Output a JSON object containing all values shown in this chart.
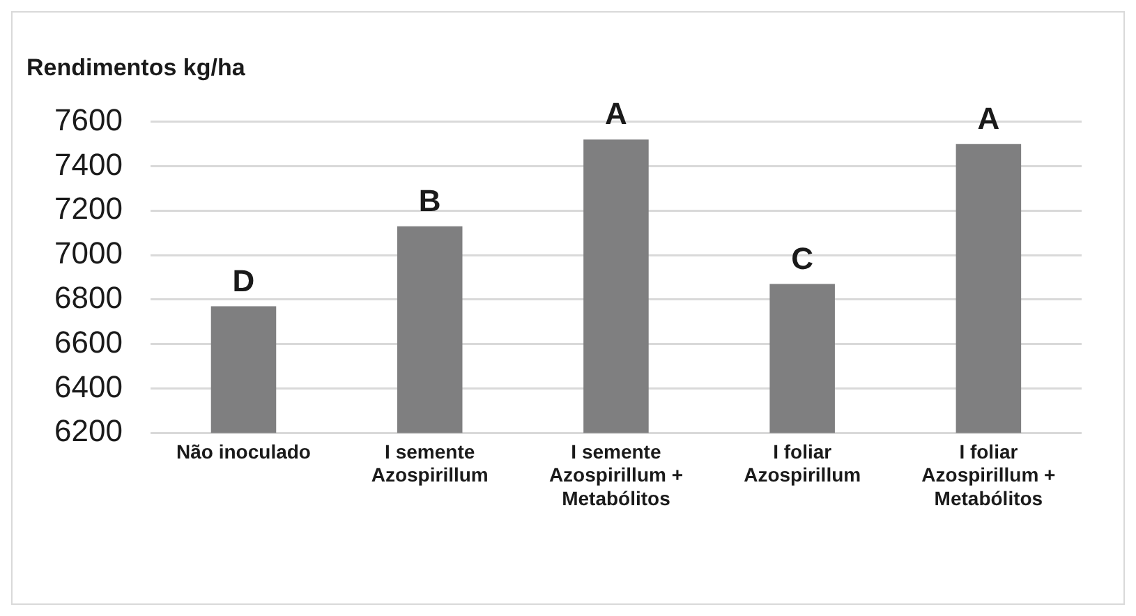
{
  "chart_data": {
    "type": "bar",
    "title": "Rendimentos kg/ha",
    "categories": [
      "Não inoculado",
      "I semente\nAzospirillum",
      "I semente\nAzospirillum +\nMetabólitos",
      "I foliar\nAzospirillum",
      "I foliar\nAzospirillum +\nMetabólitos"
    ],
    "values": [
      6770,
      7130,
      7520,
      6870,
      7500
    ],
    "value_labels": [
      "D",
      "B",
      "A",
      "C",
      "A"
    ],
    "color": "#7f7f80",
    "ylim": [
      6200,
      7600
    ],
    "yticks": [
      6200,
      6400,
      6600,
      6800,
      7000,
      7200,
      7400,
      7600
    ],
    "grid": "y"
  }
}
